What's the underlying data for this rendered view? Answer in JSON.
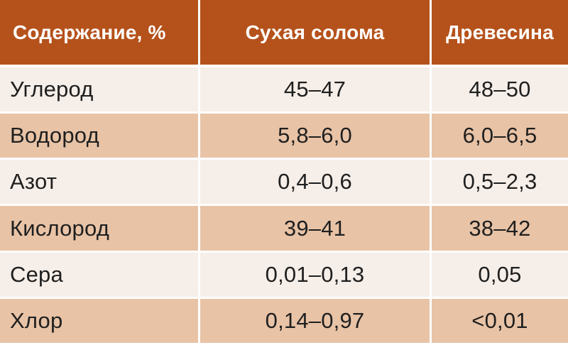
{
  "table": {
    "headers": [
      "Содержание, %",
      "Сухая солома",
      "Древесина"
    ],
    "rows": [
      {
        "name": "Углерод",
        "straw": "45–47",
        "wood": "48–50"
      },
      {
        "name": "Водород",
        "straw": "5,8–6,0",
        "wood": "6,0–6,5"
      },
      {
        "name": "Азот",
        "straw": "0,4–0,6",
        "wood": "0,5–2,3"
      },
      {
        "name": "Кислород",
        "straw": "39–41",
        "wood": "38–42"
      },
      {
        "name": "Сера",
        "straw": "0,01–0,13",
        "wood": "0,05"
      },
      {
        "name": "Хлор",
        "straw": "0,14–0,97",
        "wood": "<0,01"
      }
    ]
  },
  "colors": {
    "header_bg": "#b5521b",
    "row_light": "#f6eee8",
    "row_tint": "#e8c3a6"
  }
}
